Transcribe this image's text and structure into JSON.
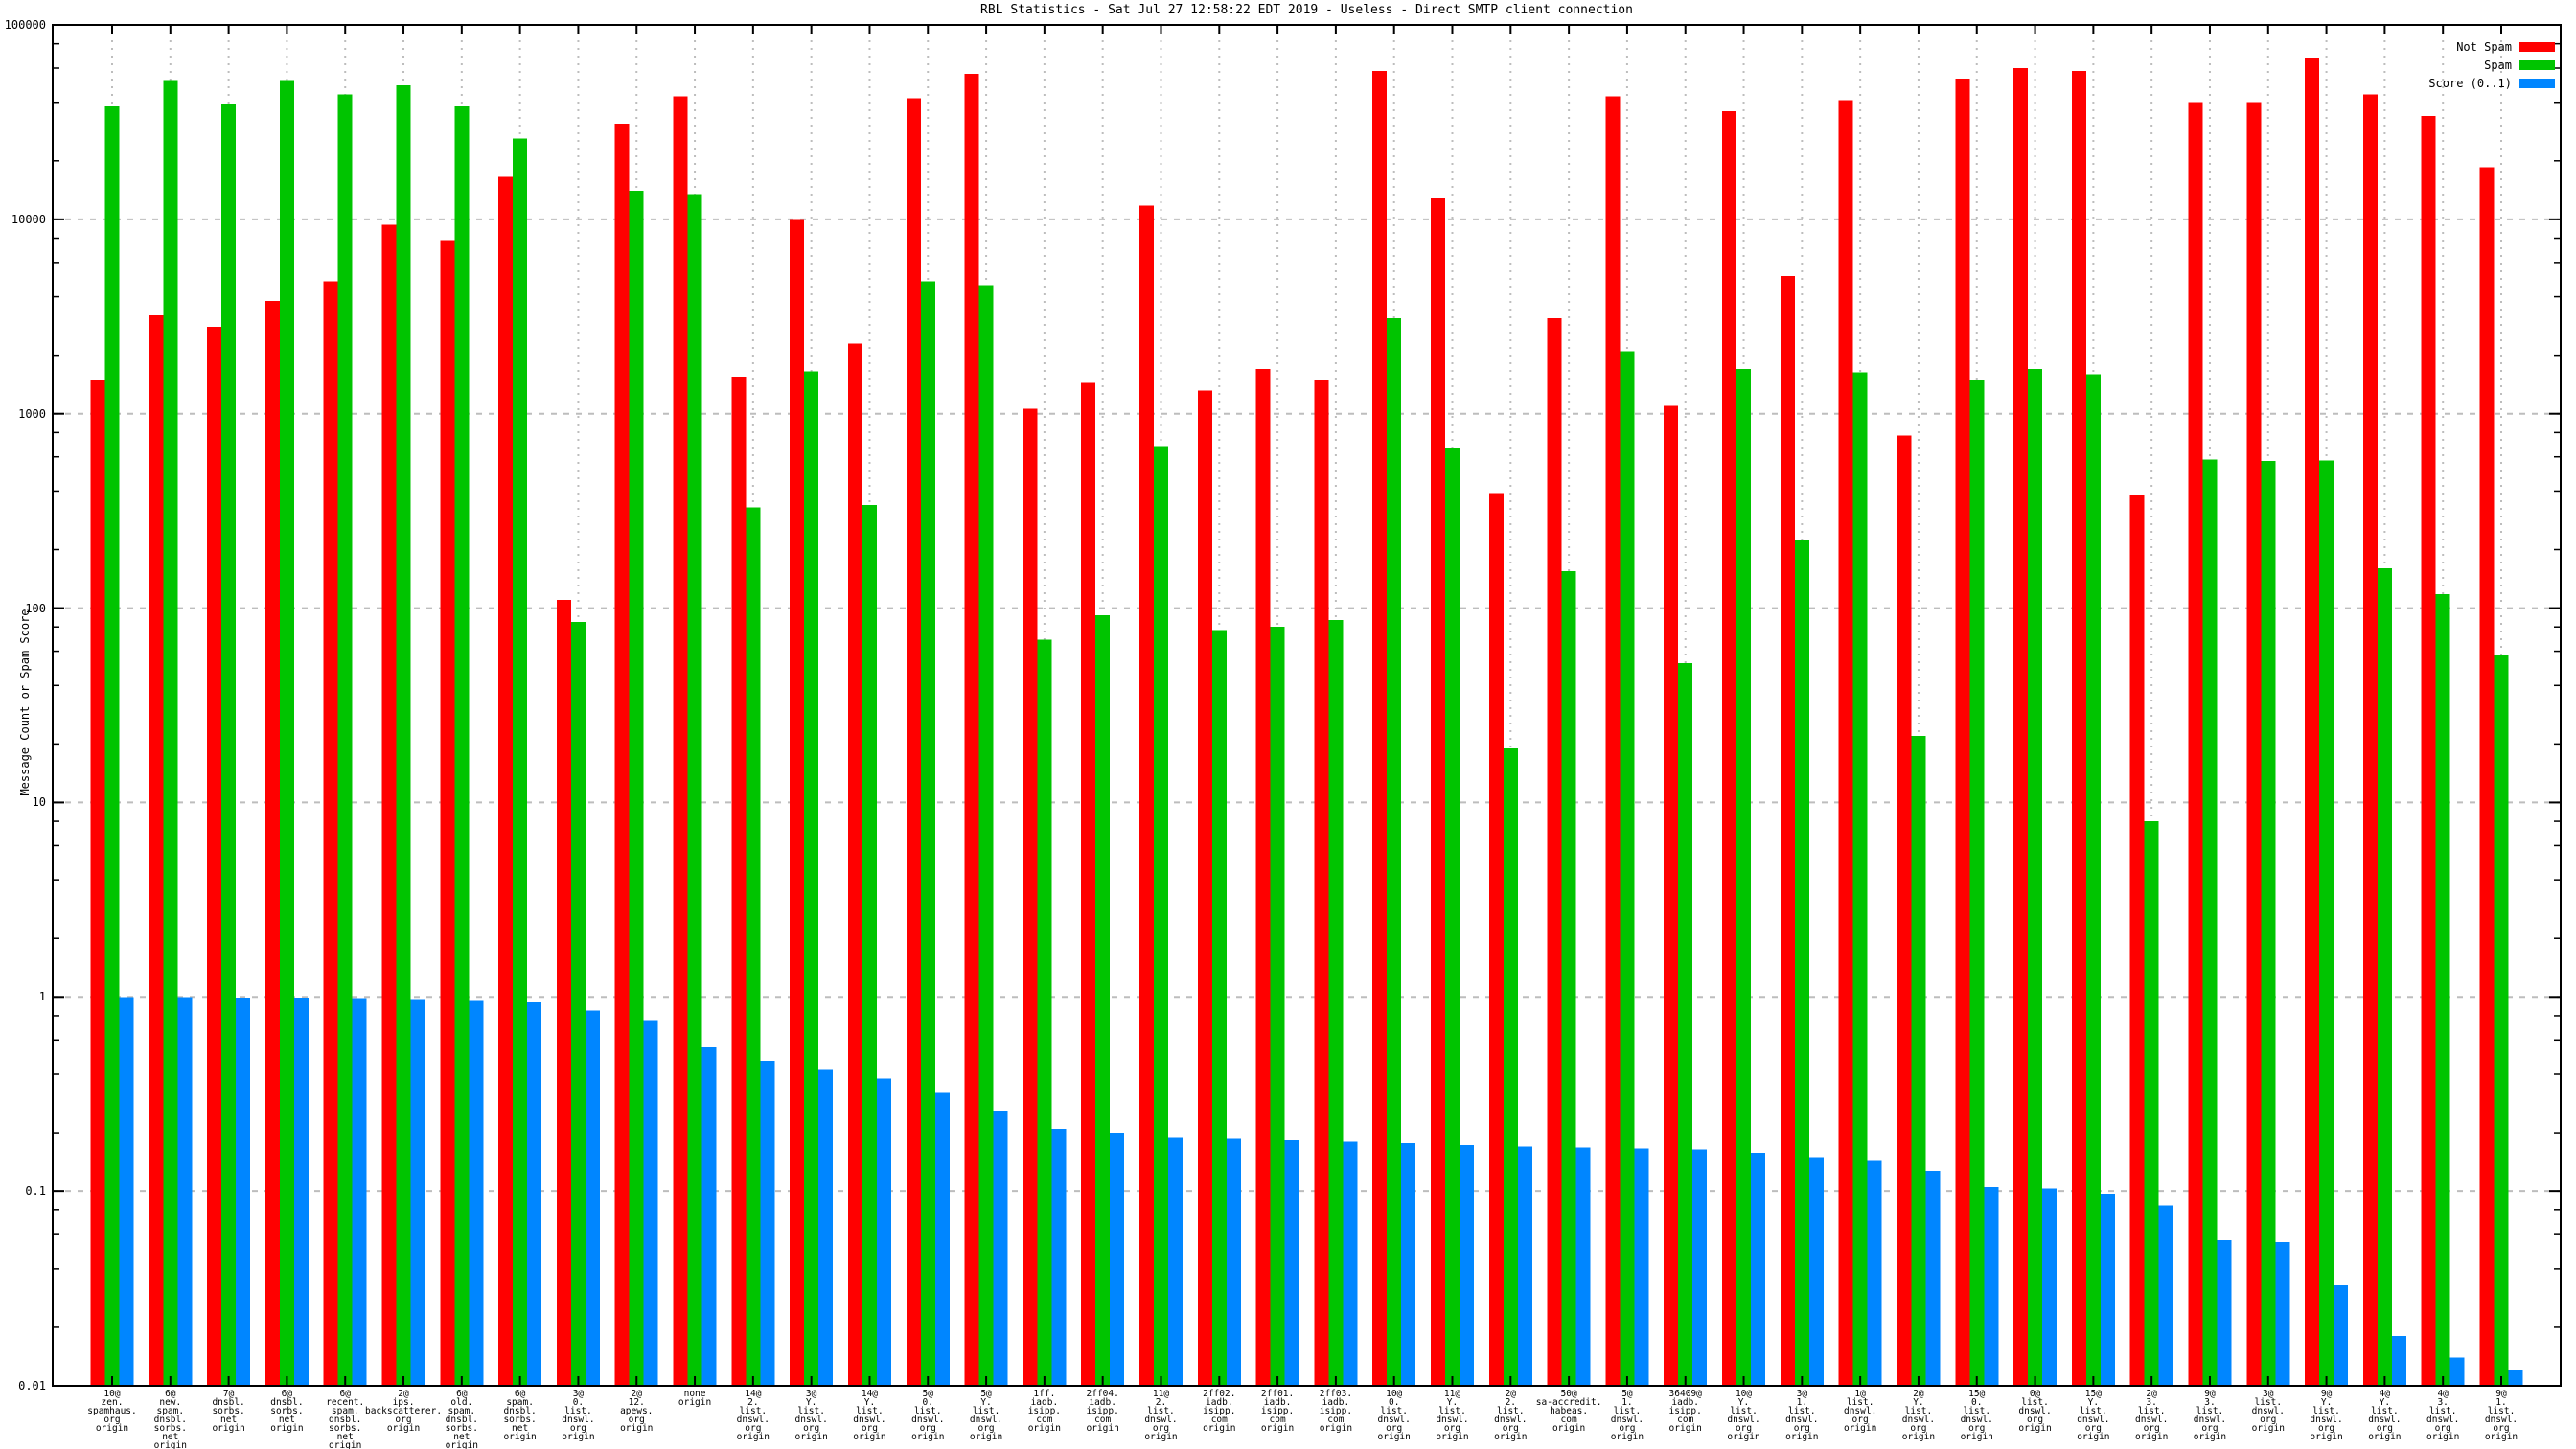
{
  "title": "RBL Statistics - Sat Jul 27 12:58:22 EDT 2019 - Useless - Direct SMTP client connection",
  "axes": {
    "ylabel": "Message Count or Spam Score",
    "ytics": [
      "100000",
      "10000",
      "1000",
      "100",
      "10",
      "1",
      "0.1",
      "0.01"
    ],
    "ymin": 0.01,
    "ymax": 100000,
    "yscale": "log",
    "grid": "on"
  },
  "legend": {
    "position": "top-right-inside",
    "entries": [
      "Not Spam",
      "Spam",
      "Score (0..1)"
    ]
  },
  "colors": {
    "not_spam": "#ff0000",
    "spam": "#00c400",
    "score": "#0086ff",
    "grid": "#bdbdbd",
    "border": "#000000",
    "background": "#ffffff"
  },
  "chart_data": {
    "type": "bar",
    "title": "RBL Statistics - Sat Jul 27 12:58:22 EDT 2019 - Useless - Direct SMTP client connection",
    "xlabel": "",
    "ylabel": "Message Count or Spam Score",
    "yscale": "log",
    "ylim": [
      0.01,
      100000
    ],
    "legend_position": "top-right",
    "categories": [
      [
        "10@",
        "zen.",
        "spamhaus.",
        "org",
        "origin"
      ],
      [
        "6@",
        "new.",
        "spam.",
        "dnsbl.",
        "sorbs.",
        "net",
        "origin"
      ],
      [
        "7@",
        "dnsbl.",
        "sorbs.",
        "net",
        "origin"
      ],
      [
        "6@",
        "dnsbl.",
        "sorbs.",
        "net",
        "origin"
      ],
      [
        "6@",
        "recent.",
        "spam.",
        "dnsbl.",
        "sorbs.",
        "net",
        "origin"
      ],
      [
        "2@",
        "ips.",
        "backscatterer.",
        "org",
        "origin"
      ],
      [
        "6@",
        "old.",
        "spam.",
        "dnsbl.",
        "sorbs.",
        "net",
        "origin"
      ],
      [
        "6@",
        "spam.",
        "dnsbl.",
        "sorbs.",
        "net",
        "origin"
      ],
      [
        "3@",
        "0.",
        "list.",
        "dnswl.",
        "org",
        "origin"
      ],
      [
        "2@",
        "12.",
        "apews.",
        "org",
        "origin"
      ],
      [
        "none",
        "origin"
      ],
      [
        "14@",
        "2.",
        "list.",
        "dnswl.",
        "org",
        "origin"
      ],
      [
        "3@",
        "Y.",
        "list.",
        "dnswl.",
        "org",
        "origin"
      ],
      [
        "14@",
        "Y.",
        "list.",
        "dnswl.",
        "org",
        "origin"
      ],
      [
        "5@",
        "0.",
        "list.",
        "dnswl.",
        "org",
        "origin"
      ],
      [
        "5@",
        "Y.",
        "list.",
        "dnswl.",
        "org",
        "origin"
      ],
      [
        "1ff.",
        "iadb.",
        "isipp.",
        "com",
        "origin"
      ],
      [
        "2ff04.",
        "iadb.",
        "isipp.",
        "com",
        "origin"
      ],
      [
        "11@",
        "2.",
        "list.",
        "dnswl.",
        "org",
        "origin"
      ],
      [
        "2ff02.",
        "iadb.",
        "isipp.",
        "com",
        "origin"
      ],
      [
        "2ff01.",
        "iadb.",
        "isipp.",
        "com",
        "origin"
      ],
      [
        "2ff03.",
        "iadb.",
        "isipp.",
        "com",
        "origin"
      ],
      [
        "10@",
        "0.",
        "list.",
        "dnswl.",
        "org",
        "origin"
      ],
      [
        "11@",
        "Y.",
        "list.",
        "dnswl.",
        "org",
        "origin"
      ],
      [
        "2@",
        "2.",
        "list.",
        "dnswl.",
        "org",
        "origin"
      ],
      [
        "50@",
        "sa-accredit.",
        "habeas.",
        "com",
        "origin"
      ],
      [
        "5@",
        "1.",
        "list.",
        "dnswl.",
        "org",
        "origin"
      ],
      [
        "36409@",
        "iadb.",
        "isipp.",
        "com",
        "origin"
      ],
      [
        "10@",
        "Y.",
        "list.",
        "dnswl.",
        "org",
        "origin"
      ],
      [
        "3@",
        "1.",
        "list.",
        "dnswl.",
        "org",
        "origin"
      ],
      [
        "1@",
        "list.",
        "dnswl.",
        "org",
        "origin"
      ],
      [
        "2@",
        "Y.",
        "list.",
        "dnswl.",
        "org",
        "origin"
      ],
      [
        "15@",
        "0.",
        "list.",
        "dnswl.",
        "org",
        "origin"
      ],
      [
        "0@",
        "list.",
        "dnswl.",
        "org",
        "origin"
      ],
      [
        "15@",
        "Y.",
        "list.",
        "dnswl.",
        "org",
        "origin"
      ],
      [
        "2@",
        "3.",
        "list.",
        "dnswl.",
        "org",
        "origin"
      ],
      [
        "9@",
        "3.",
        "list.",
        "dnswl.",
        "org",
        "origin"
      ],
      [
        "3@",
        "list.",
        "dnswl.",
        "org",
        "origin"
      ],
      [
        "9@",
        "Y.",
        "list.",
        "dnswl.",
        "org",
        "origin"
      ],
      [
        "4@",
        "Y.",
        "list.",
        "dnswl.",
        "org",
        "origin"
      ],
      [
        "4@",
        "3.",
        "list.",
        "dnswl.",
        "org",
        "origin"
      ],
      [
        "9@",
        "1.",
        "list.",
        "dnswl.",
        "org",
        "origin"
      ]
    ],
    "series": [
      {
        "name": "Not Spam",
        "color": "#ff0000",
        "values": [
          1500,
          3200,
          2800,
          3800,
          4800,
          9400,
          7800,
          16500,
          110,
          31000,
          43000,
          1550,
          9900,
          2300,
          42000,
          56000,
          1060,
          1440,
          11800,
          1320,
          1700,
          1500,
          58000,
          12800,
          390,
          3100,
          43000,
          1100,
          36000,
          5100,
          41000,
          770,
          53000,
          60000,
          58000,
          380,
          40000,
          40000,
          68000,
          44000,
          34000,
          18500
        ]
      },
      {
        "name": "Spam",
        "color": "#00c400",
        "values": [
          38000,
          52000,
          39000,
          52000,
          44000,
          49000,
          38000,
          26000,
          85,
          14000,
          13500,
          330,
          1650,
          340,
          4800,
          4600,
          69,
          92,
          680,
          77,
          80,
          87,
          3100,
          670,
          19,
          155,
          2100,
          52,
          1700,
          225,
          1630,
          22,
          1500,
          1700,
          1600,
          8,
          580,
          570,
          575,
          160,
          118,
          57
        ]
      },
      {
        "name": "Score (0..1)",
        "color": "#0086ff",
        "values": [
          1.0,
          1.0,
          0.99,
          0.99,
          0.985,
          0.975,
          0.955,
          0.935,
          0.85,
          0.76,
          0.55,
          0.47,
          0.42,
          0.38,
          0.32,
          0.26,
          0.21,
          0.2,
          0.19,
          0.186,
          0.183,
          0.18,
          0.177,
          0.173,
          0.17,
          0.168,
          0.166,
          0.164,
          0.158,
          0.15,
          0.145,
          0.127,
          0.105,
          0.103,
          0.097,
          0.085,
          0.056,
          0.055,
          0.033,
          0.018,
          0.014,
          0.012
        ]
      }
    ]
  }
}
